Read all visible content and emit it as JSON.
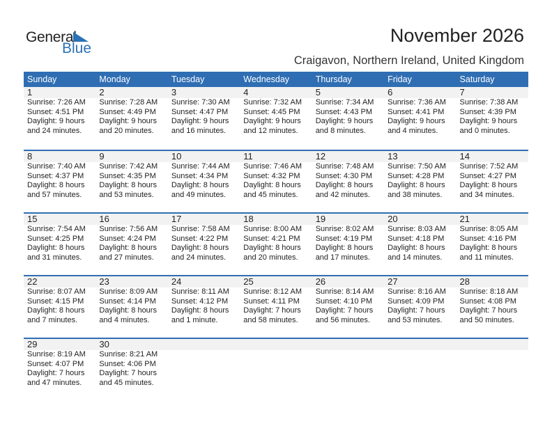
{
  "logo": {
    "text1": "General",
    "text2": "Blue"
  },
  "header": {
    "title": "November 2026",
    "location": "Craigavon, Northern Ireland, United Kingdom"
  },
  "colors": {
    "accent": "#2f6eb3",
    "band": "#f2f2f2"
  },
  "weekdays": [
    "Sunday",
    "Monday",
    "Tuesday",
    "Wednesday",
    "Thursday",
    "Friday",
    "Saturday"
  ],
  "first_weekday_index": 0,
  "days": [
    {
      "day": "1",
      "sunrise": "Sunrise: 7:26 AM",
      "sunset": "Sunset: 4:51 PM",
      "daylight1": "Daylight: 9 hours",
      "daylight2": "and 24 minutes."
    },
    {
      "day": "2",
      "sunrise": "Sunrise: 7:28 AM",
      "sunset": "Sunset: 4:49 PM",
      "daylight1": "Daylight: 9 hours",
      "daylight2": "and 20 minutes."
    },
    {
      "day": "3",
      "sunrise": "Sunrise: 7:30 AM",
      "sunset": "Sunset: 4:47 PM",
      "daylight1": "Daylight: 9 hours",
      "daylight2": "and 16 minutes."
    },
    {
      "day": "4",
      "sunrise": "Sunrise: 7:32 AM",
      "sunset": "Sunset: 4:45 PM",
      "daylight1": "Daylight: 9 hours",
      "daylight2": "and 12 minutes."
    },
    {
      "day": "5",
      "sunrise": "Sunrise: 7:34 AM",
      "sunset": "Sunset: 4:43 PM",
      "daylight1": "Daylight: 9 hours",
      "daylight2": "and 8 minutes."
    },
    {
      "day": "6",
      "sunrise": "Sunrise: 7:36 AM",
      "sunset": "Sunset: 4:41 PM",
      "daylight1": "Daylight: 9 hours",
      "daylight2": "and 4 minutes."
    },
    {
      "day": "7",
      "sunrise": "Sunrise: 7:38 AM",
      "sunset": "Sunset: 4:39 PM",
      "daylight1": "Daylight: 9 hours",
      "daylight2": "and 0 minutes."
    },
    {
      "day": "8",
      "sunrise": "Sunrise: 7:40 AM",
      "sunset": "Sunset: 4:37 PM",
      "daylight1": "Daylight: 8 hours",
      "daylight2": "and 57 minutes."
    },
    {
      "day": "9",
      "sunrise": "Sunrise: 7:42 AM",
      "sunset": "Sunset: 4:35 PM",
      "daylight1": "Daylight: 8 hours",
      "daylight2": "and 53 minutes."
    },
    {
      "day": "10",
      "sunrise": "Sunrise: 7:44 AM",
      "sunset": "Sunset: 4:34 PM",
      "daylight1": "Daylight: 8 hours",
      "daylight2": "and 49 minutes."
    },
    {
      "day": "11",
      "sunrise": "Sunrise: 7:46 AM",
      "sunset": "Sunset: 4:32 PM",
      "daylight1": "Daylight: 8 hours",
      "daylight2": "and 45 minutes."
    },
    {
      "day": "12",
      "sunrise": "Sunrise: 7:48 AM",
      "sunset": "Sunset: 4:30 PM",
      "daylight1": "Daylight: 8 hours",
      "daylight2": "and 42 minutes."
    },
    {
      "day": "13",
      "sunrise": "Sunrise: 7:50 AM",
      "sunset": "Sunset: 4:28 PM",
      "daylight1": "Daylight: 8 hours",
      "daylight2": "and 38 minutes."
    },
    {
      "day": "14",
      "sunrise": "Sunrise: 7:52 AM",
      "sunset": "Sunset: 4:27 PM",
      "daylight1": "Daylight: 8 hours",
      "daylight2": "and 34 minutes."
    },
    {
      "day": "15",
      "sunrise": "Sunrise: 7:54 AM",
      "sunset": "Sunset: 4:25 PM",
      "daylight1": "Daylight: 8 hours",
      "daylight2": "and 31 minutes."
    },
    {
      "day": "16",
      "sunrise": "Sunrise: 7:56 AM",
      "sunset": "Sunset: 4:24 PM",
      "daylight1": "Daylight: 8 hours",
      "daylight2": "and 27 minutes."
    },
    {
      "day": "17",
      "sunrise": "Sunrise: 7:58 AM",
      "sunset": "Sunset: 4:22 PM",
      "daylight1": "Daylight: 8 hours",
      "daylight2": "and 24 minutes."
    },
    {
      "day": "18",
      "sunrise": "Sunrise: 8:00 AM",
      "sunset": "Sunset: 4:21 PM",
      "daylight1": "Daylight: 8 hours",
      "daylight2": "and 20 minutes."
    },
    {
      "day": "19",
      "sunrise": "Sunrise: 8:02 AM",
      "sunset": "Sunset: 4:19 PM",
      "daylight1": "Daylight: 8 hours",
      "daylight2": "and 17 minutes."
    },
    {
      "day": "20",
      "sunrise": "Sunrise: 8:03 AM",
      "sunset": "Sunset: 4:18 PM",
      "daylight1": "Daylight: 8 hours",
      "daylight2": "and 14 minutes."
    },
    {
      "day": "21",
      "sunrise": "Sunrise: 8:05 AM",
      "sunset": "Sunset: 4:16 PM",
      "daylight1": "Daylight: 8 hours",
      "daylight2": "and 11 minutes."
    },
    {
      "day": "22",
      "sunrise": "Sunrise: 8:07 AM",
      "sunset": "Sunset: 4:15 PM",
      "daylight1": "Daylight: 8 hours",
      "daylight2": "and 7 minutes."
    },
    {
      "day": "23",
      "sunrise": "Sunrise: 8:09 AM",
      "sunset": "Sunset: 4:14 PM",
      "daylight1": "Daylight: 8 hours",
      "daylight2": "and 4 minutes."
    },
    {
      "day": "24",
      "sunrise": "Sunrise: 8:11 AM",
      "sunset": "Sunset: 4:12 PM",
      "daylight1": "Daylight: 8 hours",
      "daylight2": "and 1 minute."
    },
    {
      "day": "25",
      "sunrise": "Sunrise: 8:12 AM",
      "sunset": "Sunset: 4:11 PM",
      "daylight1": "Daylight: 7 hours",
      "daylight2": "and 58 minutes."
    },
    {
      "day": "26",
      "sunrise": "Sunrise: 8:14 AM",
      "sunset": "Sunset: 4:10 PM",
      "daylight1": "Daylight: 7 hours",
      "daylight2": "and 56 minutes."
    },
    {
      "day": "27",
      "sunrise": "Sunrise: 8:16 AM",
      "sunset": "Sunset: 4:09 PM",
      "daylight1": "Daylight: 7 hours",
      "daylight2": "and 53 minutes."
    },
    {
      "day": "28",
      "sunrise": "Sunrise: 8:18 AM",
      "sunset": "Sunset: 4:08 PM",
      "daylight1": "Daylight: 7 hours",
      "daylight2": "and 50 minutes."
    },
    {
      "day": "29",
      "sunrise": "Sunrise: 8:19 AM",
      "sunset": "Sunset: 4:07 PM",
      "daylight1": "Daylight: 7 hours",
      "daylight2": "and 47 minutes."
    },
    {
      "day": "30",
      "sunrise": "Sunrise: 8:21 AM",
      "sunset": "Sunset: 4:06 PM",
      "daylight1": "Daylight: 7 hours",
      "daylight2": "and 45 minutes."
    }
  ]
}
